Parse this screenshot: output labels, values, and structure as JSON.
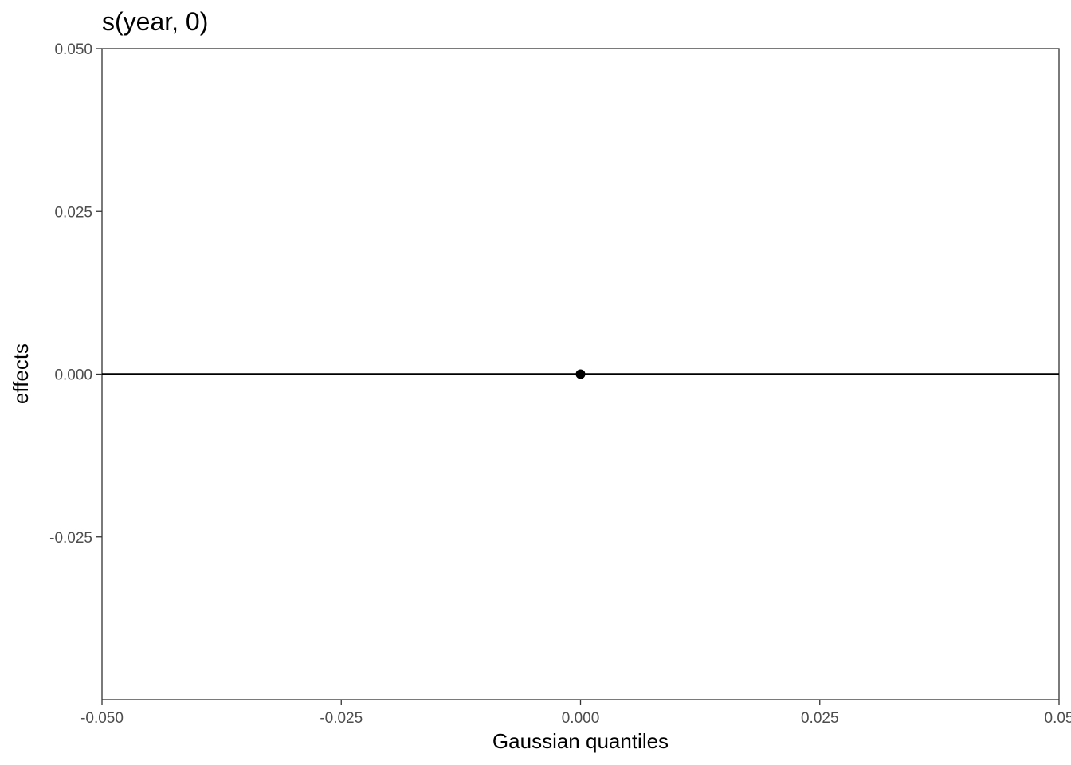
{
  "chart_data": {
    "type": "scatter",
    "title": "s(year, 0)",
    "xlabel": "Gaussian quantiles",
    "ylabel": "effects",
    "xlim": [
      -0.05,
      0.05
    ],
    "ylim": [
      -0.05,
      0.05
    ],
    "x_ticks": [
      -0.05,
      -0.025,
      0.0,
      0.025,
      0.05
    ],
    "x_tick_labels": [
      "-0.050",
      "-0.025",
      "0.000",
      "0.025",
      "0.05"
    ],
    "y_ticks": [
      -0.025,
      0.0,
      0.025,
      0.05
    ],
    "y_tick_labels": [
      "-0.025",
      "0.000",
      "0.025",
      "0.050"
    ],
    "points": [
      {
        "x": 0.0,
        "y": 0.0
      }
    ],
    "reference_line": {
      "intercept": 0.0,
      "slope": 0.0
    },
    "grid": false,
    "colors": {
      "points": "#000000",
      "line": "#000000",
      "panel_border": "#333333"
    }
  }
}
